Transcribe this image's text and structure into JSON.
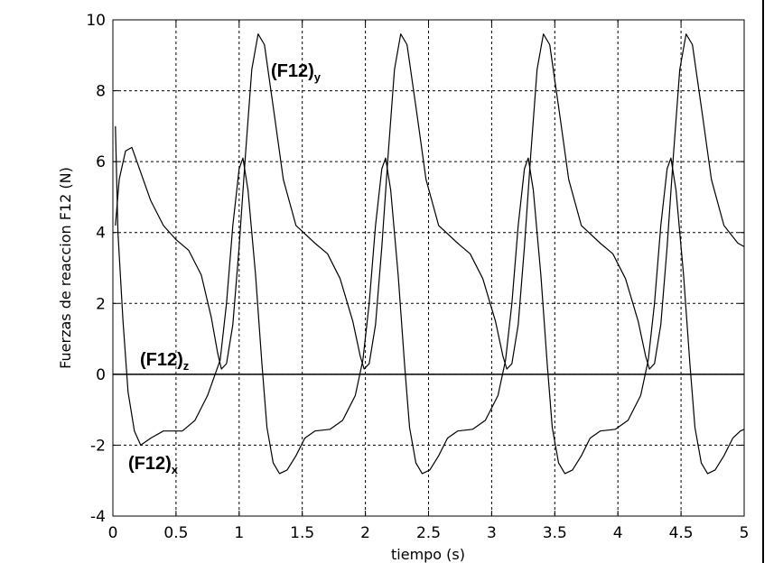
{
  "chart_data": {
    "type": "line",
    "title": "",
    "xlabel": "tiempo (s)",
    "ylabel": "Fuerzas de reaccion F12 (N)",
    "xlim": [
      0,
      5
    ],
    "ylim": [
      -4,
      10
    ],
    "grid": true,
    "x_ticks": [
      0,
      0.5,
      1,
      1.5,
      2,
      2.5,
      3,
      3.5,
      4,
      4.5,
      5
    ],
    "y_ticks": [
      -4,
      -2,
      0,
      2,
      4,
      6,
      8,
      10
    ],
    "x_tick_labels": [
      "0",
      "0.5",
      "1",
      "1.5",
      "2",
      "2.5",
      "3",
      "3.5",
      "4",
      "4.5",
      "5"
    ],
    "y_tick_labels": [
      "-4",
      "-2",
      "0",
      "2",
      "4",
      "6",
      "8",
      "10"
    ],
    "series": [
      {
        "label_main": "(F12)",
        "label_sub": "y",
        "color": "#000000",
        "points": [
          [
            0.02,
            4.2
          ],
          [
            0.05,
            5.5
          ],
          [
            0.1,
            6.3
          ],
          [
            0.15,
            6.4
          ],
          [
            0.2,
            5.9
          ],
          [
            0.3,
            4.9
          ],
          [
            0.4,
            4.2
          ],
          [
            0.5,
            3.8
          ],
          [
            0.6,
            3.5
          ],
          [
            0.7,
            2.8
          ],
          [
            0.78,
            1.6
          ],
          [
            0.83,
            0.6
          ],
          [
            0.86,
            0.15
          ],
          [
            0.9,
            0.3
          ],
          [
            0.95,
            1.4
          ],
          [
            1.0,
            3.6
          ],
          [
            1.05,
            6.2
          ],
          [
            1.1,
            8.6
          ],
          [
            1.15,
            9.6
          ],
          [
            1.2,
            9.3
          ],
          [
            1.28,
            7.3
          ],
          [
            1.35,
            5.5
          ],
          [
            1.45,
            4.2
          ],
          [
            1.6,
            3.7
          ],
          [
            1.7,
            3.4
          ],
          [
            1.8,
            2.7
          ],
          [
            1.9,
            1.5
          ],
          [
            1.96,
            0.5
          ],
          [
            1.99,
            0.15
          ],
          [
            2.03,
            0.3
          ],
          [
            2.08,
            1.4
          ],
          [
            2.13,
            3.6
          ],
          [
            2.18,
            6.2
          ],
          [
            2.23,
            8.6
          ],
          [
            2.28,
            9.6
          ],
          [
            2.33,
            9.3
          ],
          [
            2.41,
            7.3
          ],
          [
            2.48,
            5.5
          ],
          [
            2.58,
            4.2
          ],
          [
            2.73,
            3.7
          ],
          [
            2.83,
            3.4
          ],
          [
            2.93,
            2.7
          ],
          [
            3.03,
            1.5
          ],
          [
            3.09,
            0.5
          ],
          [
            3.12,
            0.15
          ],
          [
            3.16,
            0.3
          ],
          [
            3.21,
            1.4
          ],
          [
            3.26,
            3.6
          ],
          [
            3.31,
            6.2
          ],
          [
            3.36,
            8.6
          ],
          [
            3.41,
            9.6
          ],
          [
            3.46,
            9.3
          ],
          [
            3.54,
            7.3
          ],
          [
            3.61,
            5.5
          ],
          [
            3.71,
            4.2
          ],
          [
            3.86,
            3.7
          ],
          [
            3.96,
            3.4
          ],
          [
            4.06,
            2.7
          ],
          [
            4.16,
            1.5
          ],
          [
            4.22,
            0.5
          ],
          [
            4.25,
            0.15
          ],
          [
            4.29,
            0.3
          ],
          [
            4.34,
            1.4
          ],
          [
            4.39,
            3.6
          ],
          [
            4.44,
            6.2
          ],
          [
            4.49,
            8.6
          ],
          [
            4.54,
            9.6
          ],
          [
            4.59,
            9.3
          ],
          [
            4.67,
            7.3
          ],
          [
            4.74,
            5.5
          ],
          [
            4.84,
            4.2
          ],
          [
            4.95,
            3.7
          ],
          [
            5.0,
            3.6
          ]
        ]
      },
      {
        "label_main": "(F12)",
        "label_sub": "z",
        "color": "#000000",
        "points": [
          [
            0,
            0
          ],
          [
            5,
            0
          ]
        ]
      },
      {
        "label_main": "(F12)",
        "label_sub": "x",
        "color": "#000000",
        "points": [
          [
            0.02,
            7.0
          ],
          [
            0.04,
            4.0
          ],
          [
            0.08,
            1.5
          ],
          [
            0.12,
            -0.5
          ],
          [
            0.17,
            -1.6
          ],
          [
            0.22,
            -2.0
          ],
          [
            0.3,
            -1.8
          ],
          [
            0.4,
            -1.6
          ],
          [
            0.55,
            -1.6
          ],
          [
            0.65,
            -1.3
          ],
          [
            0.75,
            -0.6
          ],
          [
            0.85,
            0.4
          ],
          [
            0.9,
            2.0
          ],
          [
            0.95,
            4.2
          ],
          [
            1.0,
            5.8
          ],
          [
            1.03,
            6.1
          ],
          [
            1.07,
            5.2
          ],
          [
            1.13,
            2.8
          ],
          [
            1.18,
            0.3
          ],
          [
            1.22,
            -1.5
          ],
          [
            1.27,
            -2.5
          ],
          [
            1.32,
            -2.8
          ],
          [
            1.38,
            -2.7
          ],
          [
            1.45,
            -2.3
          ],
          [
            1.52,
            -1.8
          ],
          [
            1.6,
            -1.6
          ],
          [
            1.72,
            -1.55
          ],
          [
            1.82,
            -1.3
          ],
          [
            1.92,
            -0.6
          ],
          [
            1.98,
            0.4
          ],
          [
            2.03,
            2.0
          ],
          [
            2.08,
            4.2
          ],
          [
            2.13,
            5.8
          ],
          [
            2.16,
            6.1
          ],
          [
            2.2,
            5.2
          ],
          [
            2.26,
            2.8
          ],
          [
            2.31,
            0.3
          ],
          [
            2.35,
            -1.5
          ],
          [
            2.4,
            -2.5
          ],
          [
            2.45,
            -2.8
          ],
          [
            2.51,
            -2.7
          ],
          [
            2.58,
            -2.3
          ],
          [
            2.65,
            -1.8
          ],
          [
            2.73,
            -1.6
          ],
          [
            2.85,
            -1.55
          ],
          [
            2.95,
            -1.3
          ],
          [
            3.05,
            -0.6
          ],
          [
            3.11,
            0.4
          ],
          [
            3.16,
            2.0
          ],
          [
            3.21,
            4.2
          ],
          [
            3.26,
            5.8
          ],
          [
            3.29,
            6.1
          ],
          [
            3.33,
            5.2
          ],
          [
            3.39,
            2.8
          ],
          [
            3.44,
            0.3
          ],
          [
            3.48,
            -1.5
          ],
          [
            3.53,
            -2.5
          ],
          [
            3.58,
            -2.8
          ],
          [
            3.64,
            -2.7
          ],
          [
            3.71,
            -2.3
          ],
          [
            3.78,
            -1.8
          ],
          [
            3.86,
            -1.6
          ],
          [
            3.98,
            -1.55
          ],
          [
            4.08,
            -1.3
          ],
          [
            4.18,
            -0.6
          ],
          [
            4.24,
            0.4
          ],
          [
            4.29,
            2.0
          ],
          [
            4.34,
            4.2
          ],
          [
            4.39,
            5.8
          ],
          [
            4.42,
            6.1
          ],
          [
            4.46,
            5.2
          ],
          [
            4.52,
            2.8
          ],
          [
            4.57,
            0.3
          ],
          [
            4.61,
            -1.5
          ],
          [
            4.66,
            -2.5
          ],
          [
            4.71,
            -2.8
          ],
          [
            4.77,
            -2.7
          ],
          [
            4.84,
            -2.3
          ],
          [
            4.91,
            -1.8
          ],
          [
            4.97,
            -1.6
          ],
          [
            5.0,
            -1.55
          ]
        ]
      }
    ]
  }
}
